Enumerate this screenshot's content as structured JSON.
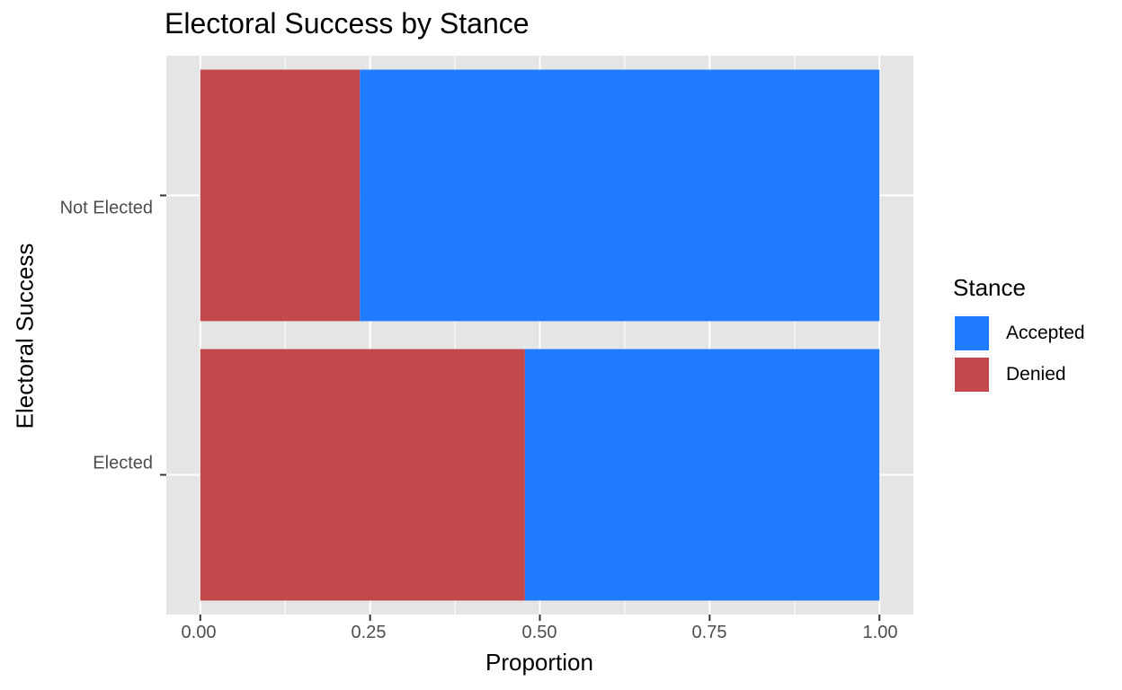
{
  "chart_data": {
    "type": "bar",
    "orientation": "horizontal",
    "stacked": true,
    "title": "Electoral Success by Stance",
    "xlabel": "Proportion",
    "ylabel": "Electoral Success",
    "categories": [
      "Not Elected",
      "Elected"
    ],
    "series": [
      {
        "name": "Denied",
        "values": [
          0.235,
          0.478
        ],
        "color": "#c2484b"
      },
      {
        "name": "Accepted",
        "values": [
          0.765,
          0.522
        ],
        "color": "#1f7bff"
      }
    ],
    "xlim": [
      -0.05,
      1.05
    ],
    "x_ticks": [
      "0.00",
      "0.25",
      "0.50",
      "0.75",
      "1.00"
    ],
    "grid": true,
    "legend": {
      "title": "Stance",
      "position": "right",
      "items": [
        "Accepted",
        "Denied"
      ]
    }
  },
  "colors": {
    "panel_bg": "#e5e5e5",
    "grid": "#ffffff",
    "tick_text": "#4d4d4d"
  }
}
